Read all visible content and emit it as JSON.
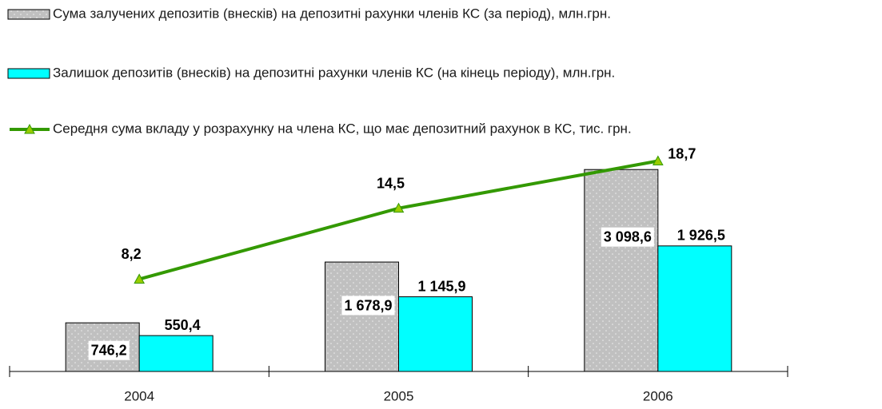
{
  "chart_data": {
    "type": "bar-line",
    "categories": [
      "2004",
      "2005",
      "2006"
    ],
    "series": [
      {
        "name": "Сума залучених депозитів (внесків) на депозитні рахунки членів КС (за період), млн.грн.",
        "color": "#c0c0c0",
        "type": "bar",
        "values": [
          746.2,
          1678.9,
          3098.6
        ],
        "value_labels": [
          "746,2",
          "1 678,9",
          "3 098,6"
        ]
      },
      {
        "name": "Залишок депозитів (внесків) на депозитні рахунки членів КС (на кінець періоду), млн.грн.",
        "color": "#00ffff",
        "type": "bar",
        "values": [
          550.4,
          1145.9,
          1926.5
        ],
        "value_labels": [
          "550,4",
          "1 145,9",
          "1 926,5"
        ]
      },
      {
        "name": "Середня сума вкладу у розрахунку на члена КС, що має депозитний рахунок в КС, тис. грн.",
        "color": "#339900",
        "marker_color": "#99cc00",
        "type": "line",
        "axis": "y2",
        "values": [
          8.2,
          14.5,
          18.7
        ],
        "value_labels": [
          "8,2",
          "14,5",
          "18,7"
        ]
      }
    ],
    "ylim": [
      0,
      3800
    ],
    "y2lim": [
      0,
      22
    ]
  }
}
